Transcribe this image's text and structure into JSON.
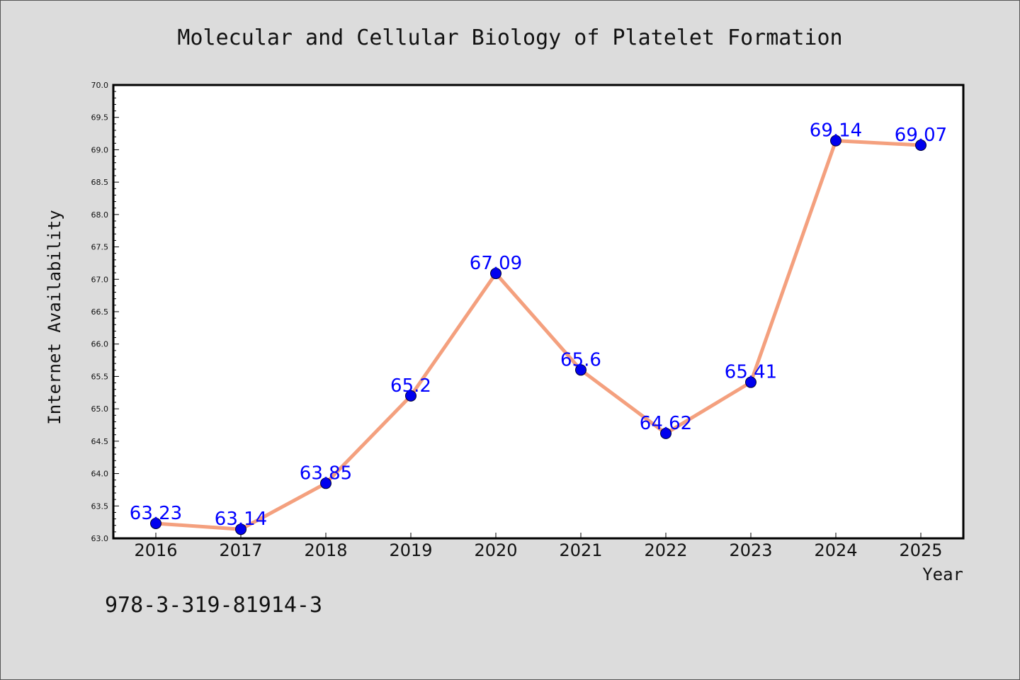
{
  "colors": {
    "background": "#dcdcdc",
    "plot_background": "#ffffff",
    "line": "#f4a07e",
    "marker": "#0000ee",
    "data_label": "#0000ff"
  },
  "isbn": "978-3-319-81914-3",
  "chart_data": {
    "type": "line",
    "title": "Molecular and Cellular Biology of Platelet Formation",
    "xlabel": "Year",
    "ylabel": "Internet Availability",
    "categories": [
      "2016",
      "2017",
      "2018",
      "2019",
      "2020",
      "2021",
      "2022",
      "2023",
      "2024",
      "2025"
    ],
    "series": [
      {
        "values": [
          63.23,
          63.14,
          63.85,
          65.2,
          67.09,
          65.6,
          64.62,
          65.41,
          69.14,
          69.07
        ],
        "labels": [
          "63.23",
          "63.14",
          "63.85",
          "65.2",
          "67.09",
          "65.6",
          "64.62",
          "65.41",
          "69.14",
          "69.07"
        ]
      }
    ],
    "ylim": [
      63.0,
      70.0
    ],
    "yticks": [
      "63.0",
      "63.5",
      "64.0",
      "64.5",
      "65.0",
      "65.5",
      "66.0",
      "66.5",
      "67.0",
      "67.5",
      "68.0",
      "68.5",
      "69.0",
      "69.5",
      "70.0"
    ],
    "grid": false,
    "legend": "none"
  }
}
